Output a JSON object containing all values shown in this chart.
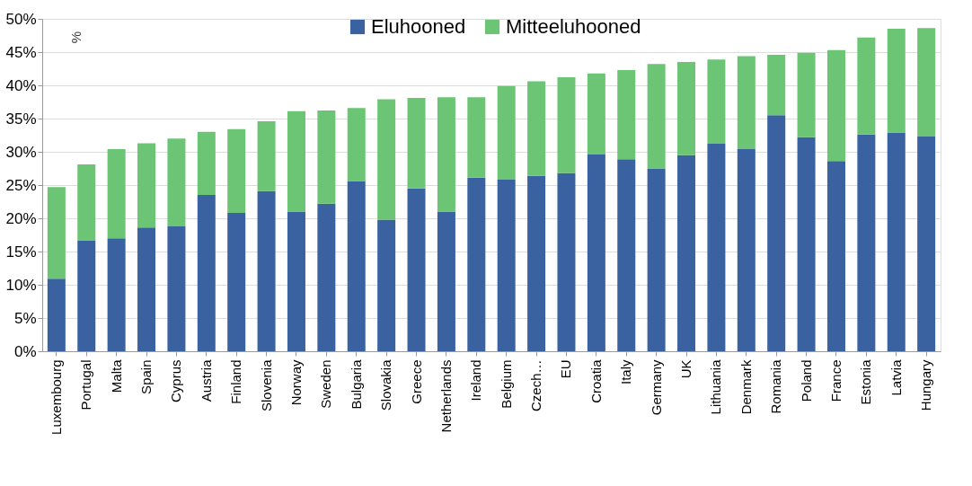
{
  "chart_data": {
    "type": "bar",
    "stacked": true,
    "ylabel": "%",
    "categories": [
      "Luxembourg",
      "Portugal",
      "Malta",
      "Spain",
      "Cyprus",
      "Austria",
      "Finland",
      "Slovenia",
      "Norway",
      "Sweden",
      "Bulgaria",
      "Slovakia",
      "Greece",
      "Netherlands",
      "Ireland",
      "Belgium",
      "Czech…",
      "EU",
      "Croatia",
      "Italy",
      "Germany",
      "UK",
      "Lithuania",
      "Denmark",
      "Romania",
      "Poland",
      "France",
      "Estonia",
      "Latvia",
      "Hungary"
    ],
    "series": [
      {
        "name": "Eluhooned",
        "color": "#3a62a0",
        "values": [
          10.9,
          16.7,
          17.0,
          18.6,
          18.8,
          23.5,
          20.8,
          24.1,
          21.0,
          22.2,
          25.6,
          19.8,
          24.5,
          21.0,
          26.1,
          25.8,
          26.4,
          26.8,
          29.6,
          28.9,
          27.5,
          29.5,
          31.2,
          30.4,
          35.5,
          32.2,
          28.6,
          32.6,
          32.9,
          32.3
        ]
      },
      {
        "name": "Mitteeluhooned",
        "color": "#6bc574",
        "values": [
          13.8,
          11.4,
          13.4,
          12.7,
          13.2,
          9.5,
          12.6,
          10.5,
          15.1,
          14.0,
          11.0,
          18.1,
          13.6,
          17.2,
          12.1,
          14.1,
          14.2,
          14.4,
          12.2,
          13.4,
          15.7,
          14.0,
          12.7,
          14.0,
          9.1,
          12.7,
          16.7,
          14.6,
          15.6,
          16.3
        ]
      }
    ],
    "ylim": [
      0,
      50
    ],
    "yticks": [
      {
        "value": 0,
        "label": "0%"
      },
      {
        "value": 5,
        "label": "5%"
      },
      {
        "value": 10,
        "label": "10%"
      },
      {
        "value": 15,
        "label": "15%"
      },
      {
        "value": 20,
        "label": "20%"
      },
      {
        "value": 25,
        "label": "25%"
      },
      {
        "value": 30,
        "label": "30%"
      },
      {
        "value": 35,
        "label": "35%"
      },
      {
        "value": 40,
        "label": "40%"
      },
      {
        "value": 45,
        "label": "45%"
      },
      {
        "value": 50,
        "label": "50%"
      }
    ],
    "grid": "y",
    "legend": "top"
  }
}
